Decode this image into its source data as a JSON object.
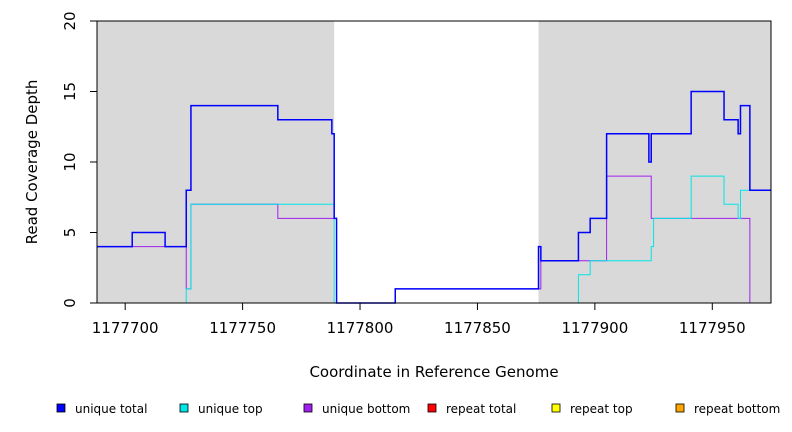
{
  "chart_data": {
    "type": "line",
    "title": "",
    "xlabel": "Coordinate in Reference Genome",
    "ylabel": "Read Coverage Depth",
    "xlim": [
      1177688,
      1177975
    ],
    "ylim": [
      0,
      20
    ],
    "x_ticks": [
      1177700,
      1177750,
      1177800,
      1177850,
      1177900,
      1177950
    ],
    "y_ticks": [
      0,
      5,
      10,
      15,
      20
    ],
    "shaded_regions": [
      {
        "x": [
          1177688,
          1177789
        ],
        "color": "#d9d9d9"
      },
      {
        "x": [
          1177876,
          1177975
        ],
        "color": "#d9d9d9"
      }
    ],
    "legend_position": "bottom",
    "series": [
      {
        "name": "unique total",
        "color": "#0000ff",
        "x": [
          1177688,
          1177703,
          1177717,
          1177726,
          1177728,
          1177765,
          1177788,
          1177789,
          1177790,
          1177815,
          1177876,
          1177877,
          1177893,
          1177898,
          1177905,
          1177923,
          1177924,
          1177925,
          1177941,
          1177955,
          1177961,
          1177962,
          1177966,
          1177975
        ],
        "y": [
          4,
          5,
          4,
          8,
          14,
          13,
          12,
          6,
          0,
          1,
          4,
          3,
          5,
          6,
          12,
          10,
          12,
          12,
          15,
          13,
          12,
          14,
          8,
          8
        ]
      },
      {
        "name": "unique top",
        "color": "#00e5e5",
        "x": [
          1177688,
          1177726,
          1177728,
          1177788,
          1177789,
          1177893,
          1177898,
          1177905,
          1177924,
          1177925,
          1177941,
          1177955,
          1177961,
          1177962,
          1177966,
          1177975
        ],
        "y": [
          0,
          1,
          7,
          7,
          0,
          2,
          3,
          3,
          4,
          6,
          9,
          7,
          6,
          8,
          8,
          8
        ]
      },
      {
        "name": "unique bottom",
        "color": "#a020f0",
        "x": [
          1177688,
          1177726,
          1177728,
          1177765,
          1177789,
          1177790,
          1177815,
          1177876,
          1177877,
          1177898,
          1177905,
          1177924,
          1177925,
          1177966,
          1177975
        ],
        "y": [
          4,
          1,
          7,
          6,
          6,
          0,
          1,
          1,
          3,
          3,
          9,
          6,
          6,
          0,
          0
        ]
      },
      {
        "name": "repeat total",
        "color": "#ff0000",
        "x": [
          1177688,
          1177975
        ],
        "y": [
          0,
          0
        ]
      },
      {
        "name": "repeat top",
        "color": "#ffff00",
        "x": [
          1177688,
          1177975
        ],
        "y": [
          0,
          0
        ]
      },
      {
        "name": "repeat bottom",
        "color": "#ffa500",
        "x": [
          1177688,
          1177975
        ],
        "y": [
          0,
          0
        ]
      }
    ]
  }
}
